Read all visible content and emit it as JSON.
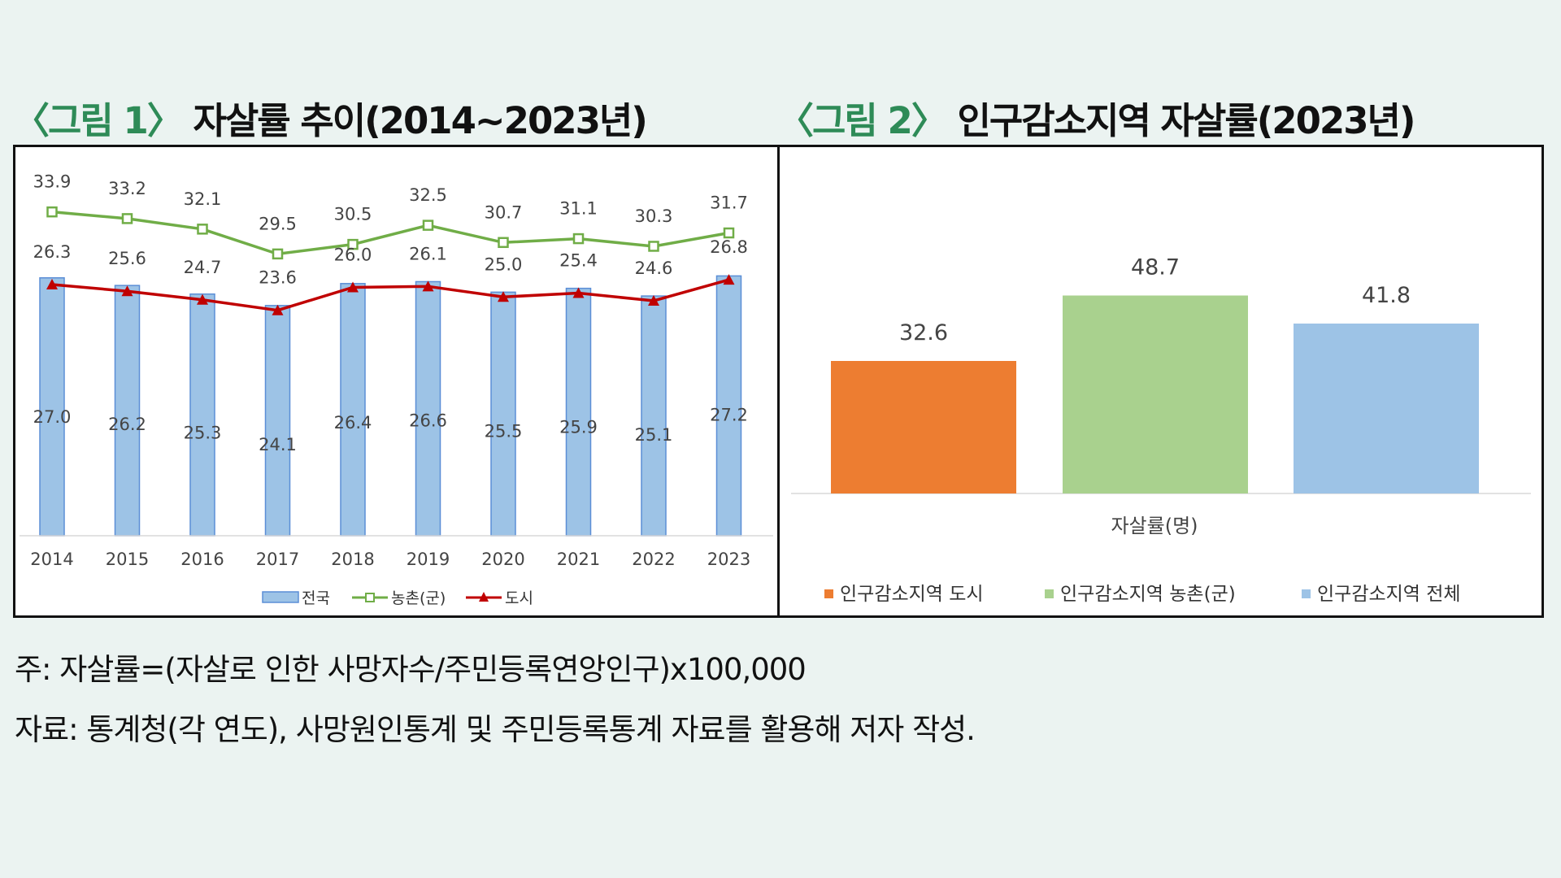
{
  "figure1": {
    "tag": "〈그림 1〉",
    "title": "자살률 추이(2014~2023년)"
  },
  "figure2": {
    "tag": "〈그림 2〉",
    "title": "인구감소지역 자살률(2023년)"
  },
  "notes": {
    "note": "주: 자살률=(자살로 인한 사망자수/주민등록연앙인구)x100,000",
    "source": "자료: 통계청(각 연도), 사망원인통계 및 주민등록통계 자료를 활용해 저자 작성."
  },
  "colors": {
    "national_bar": "#9dc3e6",
    "national_bar_border": "#5b8ed6",
    "rural_line": "#70ad47",
    "city_line": "#c00000",
    "bar_city": "#ed7d31",
    "bar_rural": "#a9d18e",
    "bar_total": "#9dc3e6"
  },
  "chart_data": [
    {
      "type": "bar",
      "categories": [
        "2014",
        "2015",
        "2016",
        "2017",
        "2018",
        "2019",
        "2020",
        "2021",
        "2022",
        "2023"
      ],
      "series": [
        {
          "name": "전국",
          "type": "bar",
          "values": [
            27.0,
            26.2,
            25.3,
            24.1,
            26.4,
            26.6,
            25.5,
            25.9,
            25.1,
            27.2
          ],
          "labels": [
            "27.0",
            "26.2",
            "25.3",
            "24.1",
            "26.4",
            "26.6",
            "25.5",
            "25.9",
            "25.1",
            "27.2"
          ]
        },
        {
          "name": "농촌(군)",
          "type": "line",
          "marker": "square",
          "values": [
            33.9,
            33.2,
            32.1,
            29.5,
            30.5,
            32.5,
            30.7,
            31.1,
            30.3,
            31.7
          ],
          "labels": [
            "33.9",
            "33.2",
            "32.1",
            "29.5",
            "30.5",
            "32.5",
            "30.7",
            "31.1",
            "30.3",
            "31.7"
          ]
        },
        {
          "name": "도시",
          "type": "line",
          "marker": "triangle",
          "values": [
            26.3,
            25.6,
            24.7,
            23.6,
            26.0,
            26.1,
            25.0,
            25.4,
            24.6,
            26.8
          ],
          "labels": [
            "26.3",
            "25.6",
            "24.7",
            "23.6",
            "26.0",
            "26.1",
            "25.0",
            "25.4",
            "24.6",
            "26.8"
          ]
        }
      ],
      "ylim": [
        0,
        40
      ],
      "legend": "bottom",
      "grid": false
    },
    {
      "type": "bar",
      "categories": [
        "자살률(명)"
      ],
      "xlabel": "자살률(명)",
      "series": [
        {
          "name": "인구감소지역 도시",
          "values": [
            32.6
          ],
          "labels": [
            "32.6"
          ]
        },
        {
          "name": "인구감소지역 농촌(군)",
          "values": [
            48.7
          ],
          "labels": [
            "48.7"
          ]
        },
        {
          "name": "인구감소지역 전체",
          "values": [
            41.8
          ],
          "labels": [
            "41.8"
          ]
        }
      ],
      "ylim": [
        0,
        55
      ],
      "legend": "bottom",
      "grid": false
    }
  ]
}
